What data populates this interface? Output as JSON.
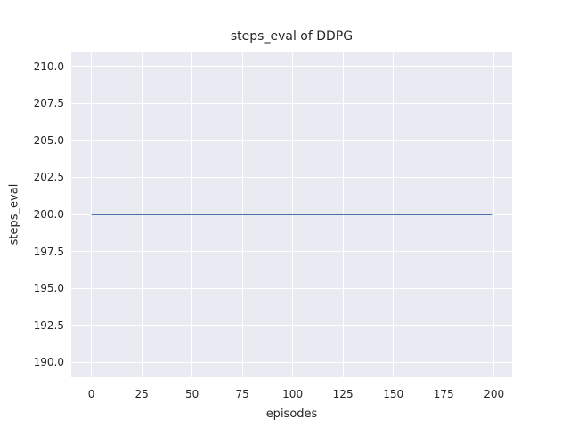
{
  "colors": {
    "figure_background": "#ffffff",
    "plot_background": "#eaeaf2",
    "gridline": "#ffffff",
    "line": "#4c72b0",
    "text": "#262626"
  },
  "chart_data": {
    "type": "line",
    "title": "steps_eval of DDPG",
    "xlabel": "episodes",
    "ylabel": "steps_eval",
    "xlim": [
      -10,
      209
    ],
    "ylim": [
      189,
      211
    ],
    "grid": true,
    "legend": false,
    "xticks": [
      0,
      25,
      50,
      75,
      100,
      125,
      150,
      175,
      200
    ],
    "xtick_labels": [
      "0",
      "25",
      "50",
      "75",
      "100",
      "125",
      "150",
      "175",
      "200"
    ],
    "yticks": [
      190.0,
      192.5,
      195.0,
      197.5,
      200.0,
      202.5,
      205.0,
      207.5,
      210.0
    ],
    "ytick_labels": [
      "190.0",
      "192.5",
      "195.0",
      "197.5",
      "200.0",
      "202.5",
      "205.0",
      "207.5",
      "210.0"
    ],
    "series": [
      {
        "name": "steps_eval",
        "color": "#4c72b0",
        "x": [
          0,
          199
        ],
        "y": [
          200.0,
          200.0
        ],
        "note": "constant line: steps_eval stays at 200.0 for all 200 evaluation episodes"
      }
    ]
  }
}
